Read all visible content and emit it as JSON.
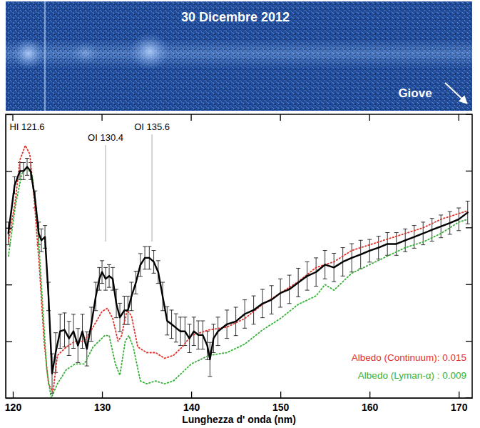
{
  "chart_data": {
    "type": "line",
    "image_title": "30 Dicembre 2012",
    "image_label": "Giove",
    "x_label": "Lunghezza d' onda (nm)",
    "xlim": [
      119.2,
      171.5
    ],
    "xticks": [
      120,
      130,
      140,
      150,
      160,
      170
    ],
    "ylim": [
      0,
      100
    ],
    "yticks": [
      0,
      20,
      40,
      60,
      80,
      100
    ],
    "tick_labels": "x",
    "legend": "bottom-right",
    "annotations": [
      {
        "text": "HI 121.6",
        "x": 121.6
      },
      {
        "text": "OI 130.4",
        "x": 130.4,
        "line_style": "solid"
      },
      {
        "text": "OI 135.6",
        "x": 135.6,
        "line_style": "solid"
      }
    ],
    "series": [
      {
        "color": "#000000",
        "line_style": "solid",
        "x": [
          119.5,
          120.2,
          120.8,
          121.2,
          121.6,
          122.0,
          122.5,
          122.9,
          123.2,
          123.6,
          124.0,
          124.4,
          124.8,
          125.3,
          125.8,
          126.3,
          126.8,
          127.3,
          127.8,
          128.3,
          128.8,
          129.3,
          129.7,
          130.0,
          130.4,
          130.8,
          131.2,
          131.6,
          132.0,
          132.5,
          132.9,
          133.3,
          133.8,
          134.3,
          134.8,
          135.3,
          135.8,
          136.3,
          136.8,
          137.3,
          137.8,
          138.3,
          138.8,
          139.3,
          139.8,
          140.3,
          140.8,
          141.3,
          141.8,
          142.1,
          142.5,
          143,
          144,
          145,
          146,
          147,
          148,
          149,
          150,
          151,
          152,
          153,
          154,
          155,
          156,
          157,
          158,
          159,
          160,
          161,
          162,
          163,
          164,
          165,
          166,
          167,
          168,
          169,
          170,
          171
        ],
        "values": [
          58,
          75,
          80,
          80,
          81.5,
          80,
          70,
          58,
          55.6,
          56.8,
          35.8,
          8.6,
          16,
          23.5,
          24,
          21,
          23.5,
          18.5,
          23.5,
          17.3,
          26,
          35.8,
          42,
          44.4,
          42,
          43,
          42,
          33.3,
          28.4,
          30.9,
          30.9,
          35.8,
          40.7,
          46.9,
          49.4,
          49.4,
          48,
          44.4,
          35.8,
          27.2,
          26,
          24.7,
          23.5,
          23.5,
          21,
          23.5,
          22.2,
          22.2,
          18.5,
          13.6,
          21,
          23.5,
          26,
          27,
          29.6,
          31,
          33.3,
          34.6,
          37,
          38.3,
          40.7,
          43,
          44.4,
          47,
          46,
          48,
          49.4,
          50.6,
          51.9,
          53,
          54.3,
          54.3,
          55.6,
          56.8,
          58,
          59.3,
          60.5,
          61.7,
          63,
          65.4
        ],
        "errors": [
          4,
          3,
          3,
          3,
          3,
          3,
          3,
          4,
          4,
          4,
          5,
          7,
          7,
          6,
          6,
          6,
          6,
          6,
          6,
          6,
          6,
          5,
          4,
          4,
          4,
          4,
          4,
          5,
          5,
          5,
          5,
          5,
          4,
          4,
          4,
          4,
          4,
          4,
          5,
          5,
          5,
          5,
          5,
          5,
          5,
          5,
          5,
          5,
          5,
          6,
          5,
          5,
          5,
          5,
          5,
          5,
          5,
          5,
          5,
          5,
          5,
          5,
          5,
          5,
          5,
          5,
          5,
          5,
          4,
          4,
          4,
          4,
          4,
          4,
          4,
          4,
          4,
          4,
          4,
          4
        ]
      },
      {
        "name": "Albedo (Continuum): 0.015",
        "color": "#e0312a",
        "line_style": "dotted",
        "x": [
          119.5,
          120.3,
          120.8,
          121.4,
          121.9,
          122.4,
          123,
          123.5,
          124,
          124.5,
          125,
          126,
          127,
          128,
          129,
          130,
          130.6,
          131.2,
          131.8,
          132.2,
          132.8,
          133.3,
          134,
          135,
          136,
          137,
          138,
          139,
          140,
          142,
          144,
          146,
          148,
          150,
          152,
          154,
          156,
          158,
          160,
          162,
          164,
          166,
          168,
          170,
          171
        ],
        "values": [
          55,
          70,
          84,
          89,
          86,
          70,
          45,
          20,
          5,
          2,
          15,
          18,
          20,
          20,
          25,
          30.5,
          31.6,
          28,
          20,
          22,
          31,
          29,
          18,
          16,
          16,
          14,
          15,
          18,
          22,
          24,
          25,
          28,
          33,
          37,
          41,
          46,
          48,
          52,
          54,
          56,
          58,
          60,
          63,
          65,
          66
        ]
      },
      {
        "name": "Albedo (Lyman-α) : 0.009",
        "color": "#35b035",
        "line_style": "dotted",
        "x": [
          119.5,
          120.3,
          121,
          121.6,
          122.2,
          122.8,
          123.3,
          123.8,
          124.3,
          125,
          126,
          127,
          128,
          129,
          130.3,
          130.8,
          131.5,
          132,
          132.6,
          133,
          133.5,
          134.3,
          135,
          136,
          137,
          138,
          139,
          140,
          142,
          144,
          146,
          148,
          150,
          152,
          154,
          155,
          156,
          158,
          160,
          162,
          164,
          166,
          168,
          170,
          171
        ],
        "values": [
          50,
          68,
          79,
          81.5,
          78,
          60,
          35,
          10,
          0,
          5,
          10,
          12,
          12,
          18,
          22,
          22,
          12,
          8,
          20,
          22,
          18,
          6,
          5,
          6,
          5,
          6,
          9,
          12,
          15,
          16,
          19,
          24,
          28,
          33,
          36,
          40,
          38,
          44,
          47,
          50,
          53,
          55,
          58,
          62,
          63
        ]
      }
    ]
  }
}
